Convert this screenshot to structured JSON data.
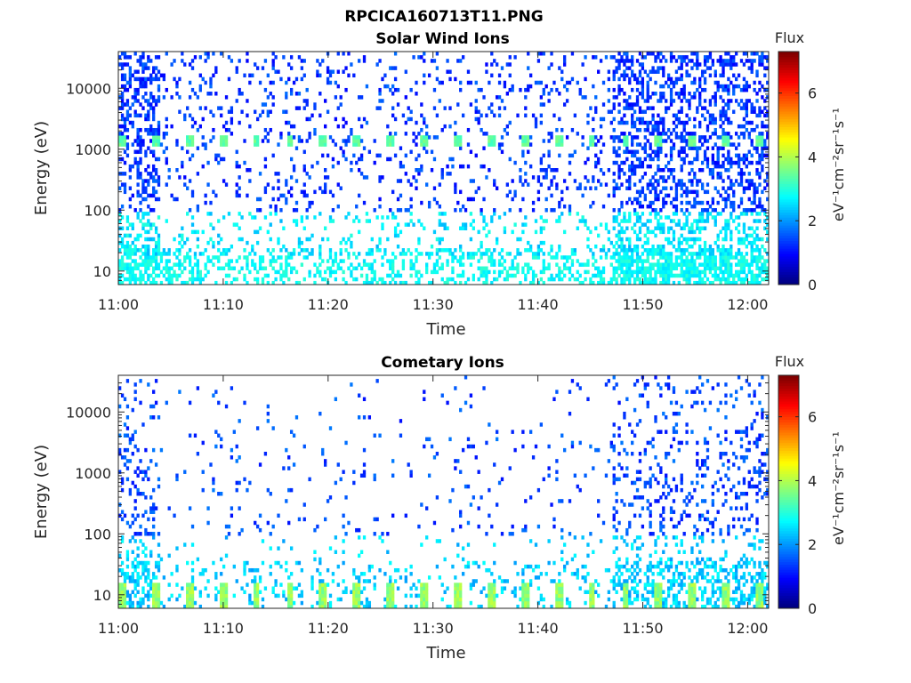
{
  "figure": {
    "title": "RPCICA160713T11.PNG"
  },
  "colormap": [
    "#00007f",
    "#0000ff",
    "#0080ff",
    "#00ffff",
    "#80ff80",
    "#ffff00",
    "#ff8000",
    "#ff0000",
    "#800000"
  ],
  "chart_data": [
    {
      "type": "heatmap",
      "title": "Solar Wind Ions",
      "xlabel": "Time",
      "ylabel": "Energy (eV)",
      "xlim": [
        "11:00",
        "12:02"
      ],
      "xticks": [
        "11:00",
        "11:10",
        "11:20",
        "11:30",
        "11:40",
        "11:50",
        "12:00"
      ],
      "ylim": [
        6,
        40000
      ],
      "yscale": "log",
      "yticks": [
        "10",
        "100",
        "1000",
        "10000"
      ],
      "colorbar": {
        "title": "Flux",
        "label": "eV⁻¹cm⁻²sr⁻¹s⁻¹",
        "range": [
          0,
          7.3
        ],
        "ticks": [
          "0",
          "2",
          "4",
          "6"
        ]
      },
      "periodic_peaks": {
        "energy_ev": 1250,
        "level": 3.4,
        "period_min": 3.2
      },
      "pattern": {
        "sparse_low_energy_level": 2.6,
        "high_activity_start_min": 47,
        "bottom_band_level": 2.8
      }
    },
    {
      "type": "heatmap",
      "title": "Cometary Ions",
      "xlabel": "Time",
      "ylabel": "Energy (eV)",
      "xlim": [
        "11:00",
        "12:02"
      ],
      "xticks": [
        "11:00",
        "11:10",
        "11:20",
        "11:30",
        "11:40",
        "11:50",
        "12:00"
      ],
      "ylim": [
        6,
        40000
      ],
      "yscale": "log",
      "yticks": [
        "10",
        "100",
        "1000",
        "10000"
      ],
      "colorbar": {
        "title": "Flux",
        "label": "eV⁻¹cm⁻²sr⁻¹s⁻¹",
        "range": [
          0,
          7.3
        ],
        "ticks": [
          "0",
          "2",
          "4",
          "6"
        ]
      },
      "periodic_peaks": {
        "energy_ev": 12,
        "level": 3.8,
        "period_min": 3.2
      },
      "pattern": {
        "sparse_low_energy_level": 2.4,
        "high_activity_start_min": 47,
        "bottom_band_level": 3.5
      }
    }
  ]
}
